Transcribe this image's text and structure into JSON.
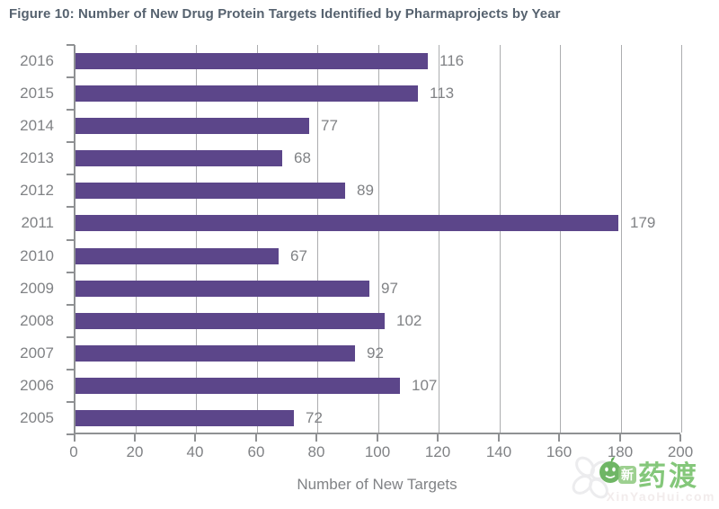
{
  "title": "Figure 10: Number of New Drug Protein Targets Identified by Pharmaprojects by Year",
  "chart_data": {
    "type": "bar",
    "orientation": "horizontal",
    "title": "Figure 10: Number of New Drug Protein Targets Identified by Pharmaprojects by Year",
    "categories": [
      "2016",
      "2015",
      "2014",
      "2013",
      "2012",
      "2011",
      "2010",
      "2009",
      "2008",
      "2007",
      "2006",
      "2005"
    ],
    "values": [
      116,
      113,
      77,
      68,
      89,
      179,
      67,
      97,
      102,
      92,
      107,
      72
    ],
    "xlabel": "Number of New Targets",
    "ylabel": "",
    "xlim": [
      0,
      200
    ],
    "xticks": [
      0,
      20,
      40,
      60,
      80,
      100,
      120,
      140,
      160,
      180,
      200
    ],
    "grid": "vertical-only",
    "legend": "none",
    "value_labels": "right-of-bar",
    "bar_color": "#5C468A"
  },
  "colors": {
    "bar": "#5C468A",
    "title_text": "#56626F",
    "axis_text": "#808285",
    "gridline": "#ACADAF",
    "axis_line": "#8F9193",
    "watermark_green": "#6FBE63",
    "watermark_faint": "#F2ECEC",
    "background": "#FFFFFF"
  },
  "watermark": {
    "clover_icon": "clover-icon",
    "circle_icon": "green-face-icon",
    "prefix_char": "新",
    "brand": "药渡",
    "site": "XinYaoHui.com"
  }
}
